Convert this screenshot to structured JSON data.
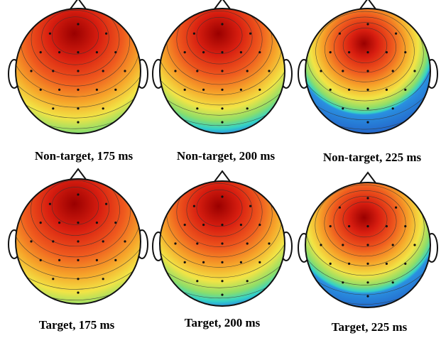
{
  "panels": [
    {
      "caption": "Non-target, 175 ms"
    },
    {
      "caption": "Non-target, 200 ms"
    },
    {
      "caption": "Non-target, 225 ms"
    },
    {
      "caption": "Target, 175 ms"
    },
    {
      "caption": "Target, 200 ms"
    },
    {
      "caption": "Target, 225 ms"
    }
  ]
}
